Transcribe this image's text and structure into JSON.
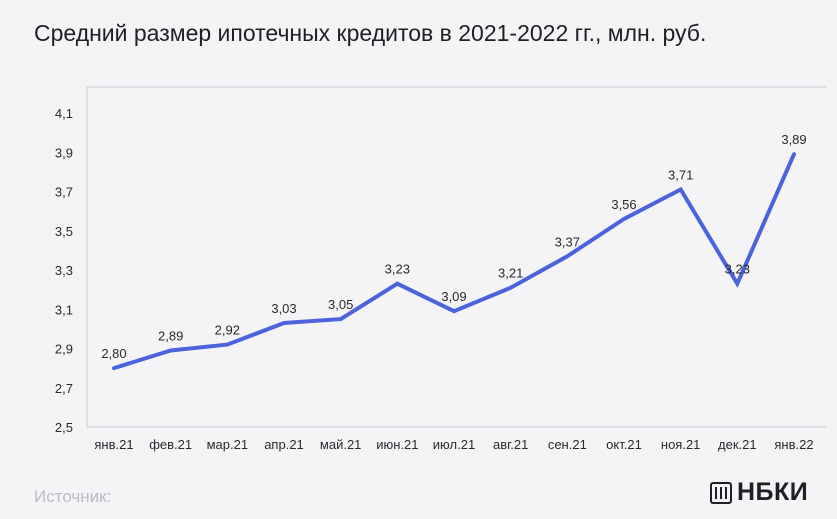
{
  "header": {
    "title": "Средний размер ипотечных кредитов в 2021-2022 гг., млн. руб."
  },
  "footer": {
    "source_label": "Источник:",
    "logo_text": "НБКИ"
  },
  "colors": {
    "line": "#4b63dc",
    "axis": "#c9cbd1",
    "text": "#2a2a2e",
    "background": "#f4f4f6"
  },
  "chart_data": {
    "type": "line",
    "title": "Средний размер ипотечных кредитов в 2021-2022 гг., млн. руб.",
    "categories": [
      "янв.21",
      "фев.21",
      "мар.21",
      "апр.21",
      "май.21",
      "июн.21",
      "июл.21",
      "авг.21",
      "сен.21",
      "окт.21",
      "ноя.21",
      "дек.21",
      "янв.22"
    ],
    "values": [
      2.8,
      2.89,
      2.92,
      3.03,
      3.05,
      3.23,
      3.09,
      3.21,
      3.37,
      3.56,
      3.71,
      3.23,
      3.89
    ],
    "data_labels": [
      "2,80",
      "2,89",
      "2,92",
      "3,03",
      "3,05",
      "3,23",
      "3,09",
      "3,21",
      "3,37",
      "3,56",
      "3,71",
      "3,23",
      "3,89"
    ],
    "y_ticks": [
      2.5,
      2.7,
      2.9,
      3.1,
      3.3,
      3.5,
      3.7,
      3.9,
      4.1
    ],
    "y_tick_labels": [
      "2,5",
      "2,7",
      "2,9",
      "3,1",
      "3,3",
      "3,5",
      "3,7",
      "3,9",
      "4,1"
    ],
    "ylim": [
      2.5,
      4.1
    ],
    "xlabel": "",
    "ylabel": "",
    "grid": false,
    "legend": false
  }
}
